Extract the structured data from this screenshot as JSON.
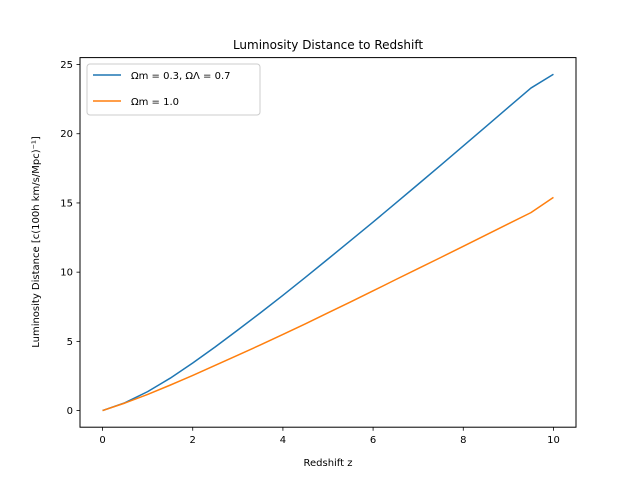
{
  "chart_data": {
    "type": "line",
    "title": "Luminosity Distance to Redshift",
    "xlabel": "Redshift z",
    "ylabel": "Luminosity Distance [c(100h km/s/Mpc)⁻¹]",
    "xlim": [
      -0.5,
      10.5
    ],
    "ylim": [
      -1.2,
      25.5
    ],
    "xticks": [
      0,
      2,
      4,
      6,
      8,
      10
    ],
    "yticks": [
      0,
      5,
      10,
      15,
      20,
      25
    ],
    "grid": false,
    "legend_position": "top-left",
    "series": [
      {
        "name": "Ωm = 0.3, ΩΛ = 0.7",
        "color": "#1f77b4",
        "x": [
          0,
          0.5,
          1,
          1.5,
          2,
          2.5,
          3,
          3.5,
          4,
          4.5,
          5,
          5.5,
          6,
          6.5,
          7,
          7.5,
          8,
          8.5,
          9,
          9.5,
          10
        ],
        "y": [
          0,
          0.57,
          1.37,
          2.34,
          3.44,
          4.6,
          5.82,
          7.06,
          8.33,
          9.63,
          10.95,
          12.28,
          13.62,
          14.98,
          16.35,
          17.73,
          19.12,
          20.51,
          21.91,
          23.3,
          24.3
        ]
      },
      {
        "name": "Ωm = 1.0",
        "color": "#ff7f0e",
        "x": [
          0,
          0.5,
          1,
          1.5,
          2,
          2.5,
          3,
          3.5,
          4,
          4.5,
          5,
          5.5,
          6,
          6.5,
          7,
          7.5,
          8,
          8.5,
          9,
          9.5,
          10
        ],
        "y": [
          0,
          0.55,
          1.17,
          1.84,
          2.54,
          3.27,
          4.0,
          4.74,
          5.5,
          6.27,
          7.06,
          7.85,
          8.65,
          9.46,
          10.26,
          11.06,
          11.87,
          12.68,
          13.49,
          14.3,
          15.4
        ]
      }
    ]
  }
}
